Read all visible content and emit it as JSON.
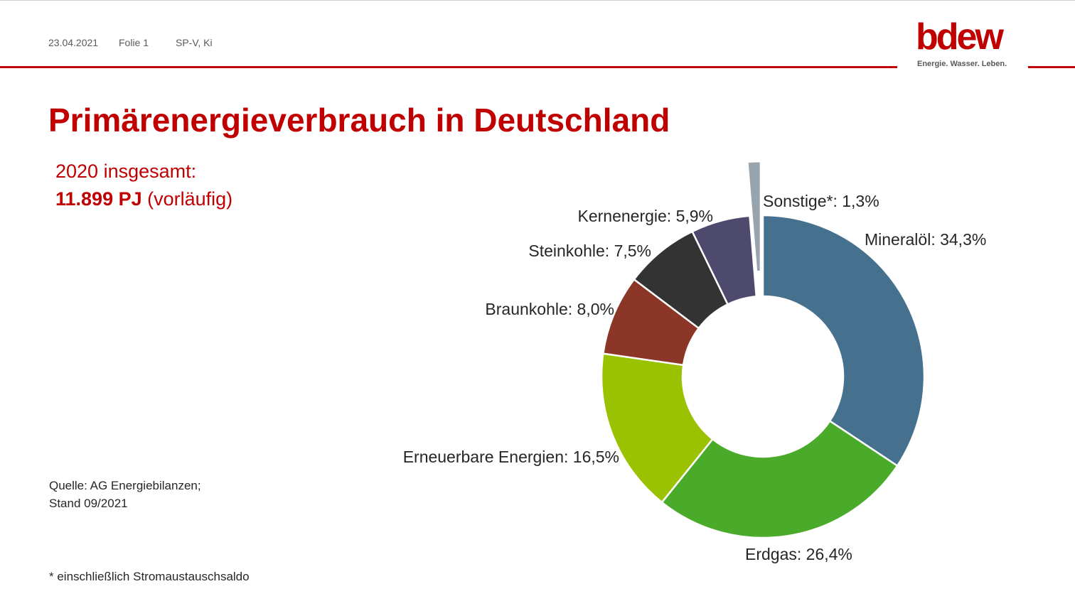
{
  "header": {
    "date": "23.04.2021",
    "slide": "Folie 1",
    "author": "SP-V, Ki",
    "logo_word": "bdew",
    "logo_slogan": "Energie. Wasser. Leben."
  },
  "subtitle": {
    "line1": "2020 insgesamt:",
    "total": "11.899 PJ",
    "status": "(vorläufig)"
  },
  "source": {
    "line1": "Quelle: AG Energiebilanzen;",
    "line2": "Stand 09/2021"
  },
  "footnote": "* einschließlich Stromaustauschsaldo",
  "chart_data": {
    "type": "pie",
    "variant": "donut",
    "title": "Primärenergieverbrauch in Deutschland",
    "unit": "%",
    "slices": [
      {
        "name": "Mineralöl",
        "value": 34.3,
        "label": "Mineralöl: 34,3%",
        "color": "#45718f"
      },
      {
        "name": "Erdgas",
        "value": 26.4,
        "label": "Erdgas: 26,4%",
        "color": "#4aaa2a"
      },
      {
        "name": "Erneuerbare Energien",
        "value": 16.5,
        "label": "Erneuerbare Energien: 16,5%",
        "color": "#9bc200"
      },
      {
        "name": "Braunkohle",
        "value": 8.0,
        "label": "Braunkohle: 8,0%",
        "color": "#8b3626"
      },
      {
        "name": "Steinkohle",
        "value": 7.5,
        "label": "Steinkohle: 7,5%",
        "color": "#333333"
      },
      {
        "name": "Kernenergie",
        "value": 5.9,
        "label": "Kernenergie: 5,9%",
        "color": "#4e4a6e"
      },
      {
        "name": "Sonstige*",
        "value": 1.3,
        "label": "Sonstige*: 1,3%",
        "color": "#98a4ad",
        "exploded": true
      }
    ]
  }
}
